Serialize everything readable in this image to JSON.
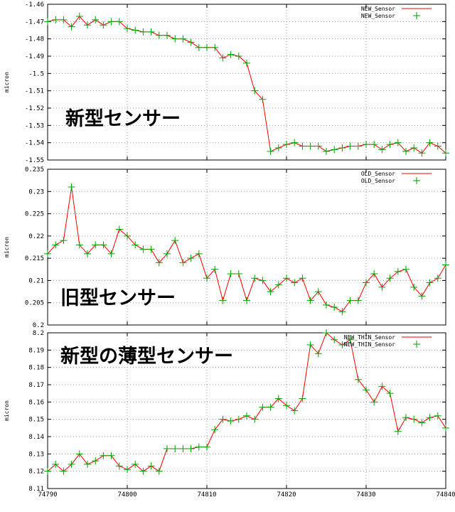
{
  "chart_data": [
    {
      "type": "line",
      "ylabel": "micron",
      "ylim": [
        -1.55,
        -1.46
      ],
      "yticks": [
        "-1.46",
        "-1.47",
        "-1.48",
        "-1.49",
        "-1.5",
        "-1.51",
        "-1.52",
        "-1.53",
        "-1.54",
        "-1.55"
      ],
      "xlim": [
        74790,
        74840
      ],
      "legend_position": "top-right",
      "grid": true,
      "annotation": "新型センサー",
      "series": [
        {
          "name": "NEW_Sensor",
          "line_color": "#ff0000",
          "marker_color": "#00a000",
          "x": [
            74790,
            74791,
            74792,
            74793,
            74794,
            74795,
            74796,
            74797,
            74798,
            74799,
            74800,
            74801,
            74802,
            74803,
            74804,
            74805,
            74806,
            74807,
            74808,
            74809,
            74810,
            74811,
            74812,
            74813,
            74814,
            74815,
            74816,
            74817,
            74818,
            74819,
            74820,
            74821,
            74822,
            74823,
            74824,
            74825,
            74826,
            74827,
            74828,
            74829,
            74830,
            74831,
            74832,
            74833,
            74834,
            74835,
            74836,
            74837,
            74838,
            74839,
            74840
          ],
          "values": [
            -1.47,
            -1.469,
            -1.469,
            -1.473,
            -1.467,
            -1.472,
            -1.469,
            -1.472,
            -1.47,
            -1.47,
            -1.474,
            -1.475,
            -1.476,
            -1.476,
            -1.478,
            -1.478,
            -1.48,
            -1.48,
            -1.482,
            -1.485,
            -1.485,
            -1.485,
            -1.491,
            -1.489,
            -1.49,
            -1.494,
            -1.51,
            -1.515,
            -1.545,
            -1.543,
            -1.541,
            -1.54,
            -1.542,
            -1.542,
            -1.542,
            -1.545,
            -1.544,
            -1.543,
            -1.542,
            -1.542,
            -1.541,
            -1.541,
            -1.544,
            -1.541,
            -1.54,
            -1.545,
            -1.543,
            -1.546,
            -1.54,
            -1.542,
            -1.546
          ]
        }
      ]
    },
    {
      "type": "line",
      "ylabel": "micron",
      "ylim": [
        0.2,
        0.235
      ],
      "yticks": [
        "0.235",
        "0.23",
        "0.225",
        "0.22",
        "0.215",
        "0.21",
        "0.205",
        "0.2"
      ],
      "xlim": [
        74790,
        74840
      ],
      "legend_position": "top-right",
      "grid": true,
      "annotation": "旧型センサー",
      "series": [
        {
          "name": "OLD_Sensor",
          "line_color": "#ff0000",
          "marker_color": "#00a000",
          "x": [
            74790,
            74791,
            74792,
            74793,
            74794,
            74795,
            74796,
            74797,
            74798,
            74799,
            74800,
            74801,
            74802,
            74803,
            74804,
            74805,
            74806,
            74807,
            74808,
            74809,
            74810,
            74811,
            74812,
            74813,
            74814,
            74815,
            74816,
            74817,
            74818,
            74819,
            74820,
            74821,
            74822,
            74823,
            74824,
            74825,
            74826,
            74827,
            74828,
            74829,
            74830,
            74831,
            74832,
            74833,
            74834,
            74835,
            74836,
            74837,
            74838,
            74839,
            74840
          ],
          "values": [
            0.216,
            0.218,
            0.219,
            0.231,
            0.218,
            0.216,
            0.218,
            0.218,
            0.216,
            0.2215,
            0.22,
            0.218,
            0.217,
            0.217,
            0.214,
            0.216,
            0.219,
            0.214,
            0.215,
            0.216,
            0.2105,
            0.2125,
            0.2055,
            0.2115,
            0.2115,
            0.2055,
            0.2105,
            0.21,
            0.2075,
            0.209,
            0.2105,
            0.2095,
            0.2105,
            0.2055,
            0.2075,
            0.2045,
            0.204,
            0.203,
            0.2055,
            0.2055,
            0.2095,
            0.2115,
            0.2085,
            0.2105,
            0.212,
            0.2125,
            0.2085,
            0.2065,
            0.2095,
            0.2105,
            0.2135
          ]
        }
      ]
    },
    {
      "type": "line",
      "ylabel": "micron",
      "ylim": [
        8.11,
        8.2
      ],
      "yticks": [
        "8.2",
        "8.19",
        "8.18",
        "8.17",
        "8.16",
        "8.15",
        "8.14",
        "8.13",
        "8.12",
        "8.11"
      ],
      "xlim": [
        74790,
        74840
      ],
      "xticks": [
        "74790",
        "74800",
        "74810",
        "74820",
        "74830",
        "74840"
      ],
      "legend_position": "top-right",
      "grid": true,
      "annotation": "新型の薄型センサー",
      "series": [
        {
          "name": "NEW_THIN_Sensor",
          "line_color": "#ff0000",
          "marker_color": "#00a000",
          "x": [
            74790,
            74791,
            74792,
            74793,
            74794,
            74795,
            74796,
            74797,
            74798,
            74799,
            74800,
            74801,
            74802,
            74803,
            74804,
            74805,
            74806,
            74807,
            74808,
            74809,
            74810,
            74811,
            74812,
            74813,
            74814,
            74815,
            74816,
            74817,
            74818,
            74819,
            74820,
            74821,
            74822,
            74823,
            74824,
            74825,
            74826,
            74827,
            74828,
            74829,
            74830,
            74831,
            74832,
            74833,
            74834,
            74835,
            74836,
            74837,
            74838,
            74839,
            74840
          ],
          "values": [
            8.12,
            8.124,
            8.12,
            8.124,
            8.13,
            8.124,
            8.126,
            8.129,
            8.129,
            8.123,
            8.121,
            8.124,
            8.12,
            8.123,
            8.12,
            8.133,
            8.133,
            8.133,
            8.133,
            8.134,
            8.134,
            8.144,
            8.15,
            8.149,
            8.15,
            8.152,
            8.15,
            8.157,
            8.157,
            8.162,
            8.158,
            8.155,
            8.162,
            8.193,
            8.188,
            8.2,
            8.196,
            8.193,
            8.196,
            8.173,
            8.167,
            8.16,
            8.169,
            8.165,
            8.143,
            8.151,
            8.15,
            8.148,
            8.151,
            8.152,
            8.145
          ]
        }
      ]
    }
  ]
}
